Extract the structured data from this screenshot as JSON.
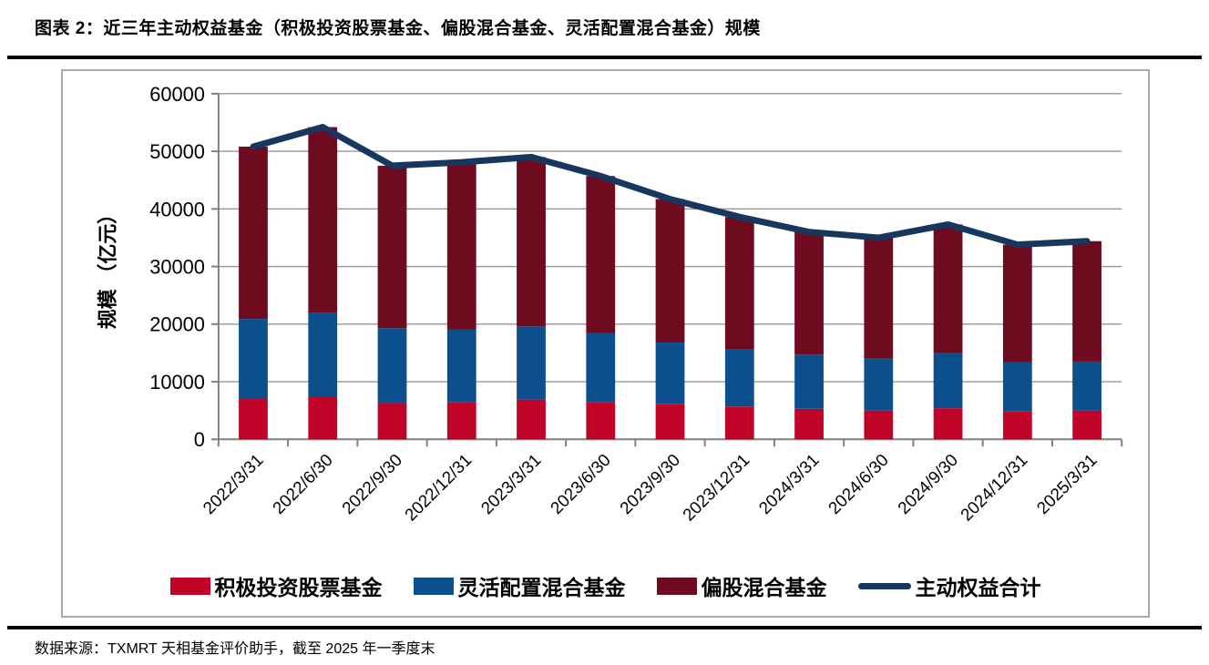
{
  "header": {
    "title": "图表 2：近三年主动权益基金（积极投资股票基金、偏股混合基金、灵活配置混合基金）规模"
  },
  "footer": {
    "source": "数据来源：TXMRT 天相基金评价助手，截至 2025 年一季度末"
  },
  "chart_data": {
    "type": "bar",
    "combo": "stacked-bar-with-line",
    "title": "",
    "xlabel": "",
    "ylabel": "规模 （亿元）",
    "ylim": [
      0,
      60000
    ],
    "ytick_step": 10000,
    "yticks": [
      0,
      10000,
      20000,
      30000,
      40000,
      50000,
      60000
    ],
    "grid": true,
    "legend_position": "bottom",
    "colors": {
      "grid": "#969696",
      "axis": "#808080"
    },
    "categories": [
      "2022/3/31",
      "2022/6/30",
      "2022/9/30",
      "2022/12/31",
      "2023/3/31",
      "2023/6/30",
      "2023/9/30",
      "2023/12/31",
      "2024/3/31",
      "2024/6/30",
      "2024/9/30",
      "2024/12/31",
      "2025/3/31"
    ],
    "series": [
      {
        "name": "积极投资股票基金",
        "type": "bar",
        "color": "#C00428",
        "values": [
          7000,
          7400,
          6300,
          6500,
          6900,
          6500,
          6100,
          5700,
          5300,
          5000,
          5400,
          4900,
          5000
        ]
      },
      {
        "name": "灵活配置混合基金",
        "type": "bar",
        "color": "#0B4F8D",
        "values": [
          13900,
          14500,
          13000,
          12600,
          12700,
          11900,
          10700,
          10000,
          9400,
          9000,
          9600,
          8500,
          8500
        ]
      },
      {
        "name": "偏股混合基金",
        "type": "bar",
        "color": "#6E0B1E",
        "values": [
          29900,
          32300,
          28200,
          29000,
          29400,
          27300,
          24900,
          22900,
          21300,
          21000,
          22300,
          20400,
          20900
        ]
      },
      {
        "name": "主动权益合计",
        "type": "line",
        "color": "#17375E",
        "values": [
          50800,
          54200,
          47500,
          48100,
          49000,
          45700,
          41700,
          38600,
          36000,
          35000,
          37300,
          33800,
          34400
        ]
      }
    ]
  }
}
